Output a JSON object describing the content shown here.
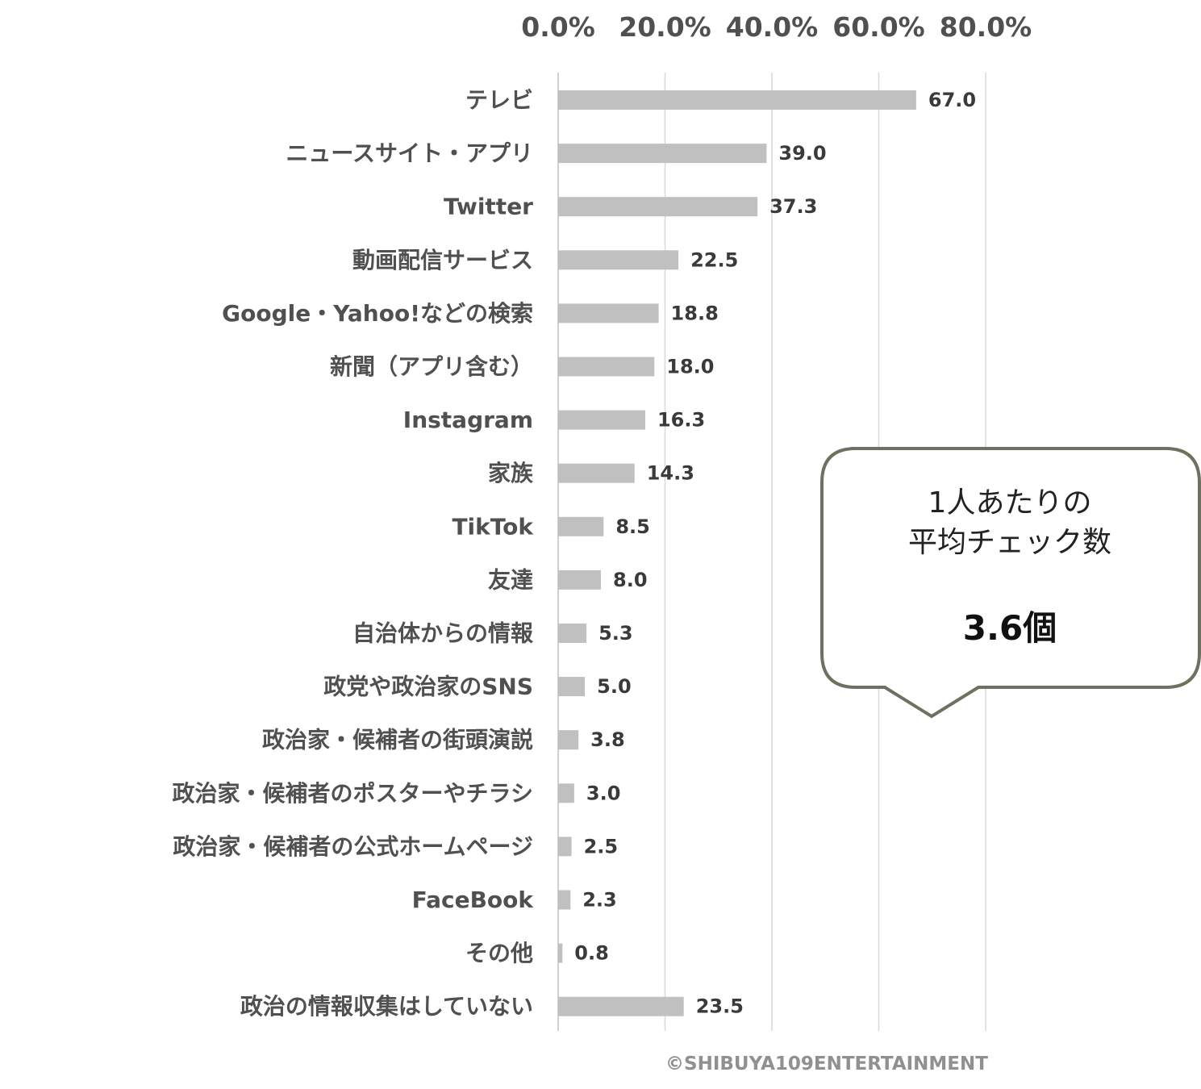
{
  "chart_data": {
    "type": "bar",
    "orientation": "horizontal",
    "xlim": [
      0,
      80
    ],
    "x_ticks": [
      "0.0%",
      "20.0%",
      "40.0%",
      "60.0%",
      "80.0%"
    ],
    "x_tick_values": [
      0,
      20,
      40,
      60,
      80
    ],
    "x_axis_position": "top",
    "grid": true,
    "categories": [
      "テレビ",
      "ニュースサイト・アプリ",
      "Twitter",
      "動画配信サービス",
      "Google・Yahoo!などの検索",
      "新聞（アプリ含む）",
      "Instagram",
      "家族",
      "TikTok",
      "友達",
      "自治体からの情報",
      "政党や政治家のSNS",
      "政治家・候補者の街頭演説",
      "政治家・候補者のポスターやチラシ",
      "政治家・候補者の公式ホームページ",
      "FaceBook",
      "その他",
      "政治の情報収集はしていない"
    ],
    "values": [
      67.0,
      39.0,
      37.3,
      22.5,
      18.8,
      18.0,
      16.3,
      14.3,
      8.5,
      8.0,
      5.3,
      5.0,
      3.8,
      3.0,
      2.5,
      2.3,
      0.8,
      23.5
    ],
    "value_labels": [
      "67.0",
      "39.0",
      "37.3",
      "22.5",
      "18.8",
      "18.0",
      "16.3",
      "14.3",
      "8.5",
      "8.0",
      "5.3",
      "5.0",
      "3.8",
      "3.0",
      "2.5",
      "2.3",
      "0.8",
      "23.5"
    ],
    "bar_color": "#c0c0c0",
    "grid_color": "#d9d9d9"
  },
  "callout": {
    "line1": "1人あたりの",
    "line2": "平均チェック数",
    "value": "3.6個",
    "border_color": "#6b7260"
  },
  "copyright": "©SHIBUYA109ENTERTAINMENT"
}
